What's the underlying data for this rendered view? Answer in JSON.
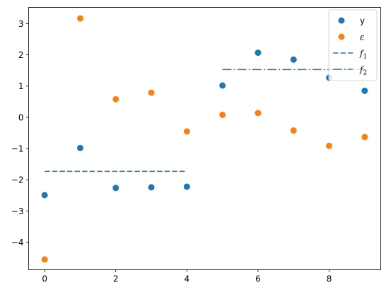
{
  "chart_data": {
    "type": "scatter",
    "xlim": [
      -0.45,
      9.45
    ],
    "ylim": [
      -4.88,
      3.52
    ],
    "xticks": [
      0,
      2,
      4,
      6,
      8
    ],
    "yticks": [
      -4,
      -3,
      -2,
      -1,
      0,
      1,
      2,
      3
    ],
    "xtick_labels": [
      "0",
      "2",
      "4",
      "6",
      "8"
    ],
    "ytick_labels": [
      "−4",
      "−3",
      "−2",
      "−1",
      "0",
      "1",
      "2",
      "3"
    ],
    "grid": false,
    "legend_position": "top-right",
    "series": [
      {
        "name": "y",
        "kind": "scatter",
        "color": "#1f77b4",
        "x": [
          0,
          1,
          2,
          3,
          4,
          5,
          6,
          7,
          8,
          9
        ],
        "y": [
          -2.49,
          -0.98,
          -2.26,
          -2.24,
          -2.22,
          1.02,
          2.07,
          1.85,
          1.27,
          0.85
        ]
      },
      {
        "name": "ε",
        "kind": "scatter",
        "color": "#ff7f0e",
        "x": [
          0,
          1,
          2,
          3,
          4,
          5,
          6,
          7,
          8,
          9
        ],
        "y": [
          -4.55,
          3.17,
          0.58,
          0.79,
          -0.45,
          0.08,
          0.14,
          -0.42,
          -0.91,
          -0.63
        ]
      },
      {
        "name": "f",
        "subscript": "1",
        "kind": "line",
        "dash": "dashed",
        "color": "#1f77b4",
        "x": [
          0,
          4
        ],
        "y": [
          -1.73,
          -1.73
        ]
      },
      {
        "name": "f",
        "subscript": "2",
        "kind": "line",
        "dash": "dashdot",
        "color": "#1f77b4",
        "x": [
          5,
          9
        ],
        "y": [
          1.53,
          1.53
        ]
      }
    ]
  }
}
